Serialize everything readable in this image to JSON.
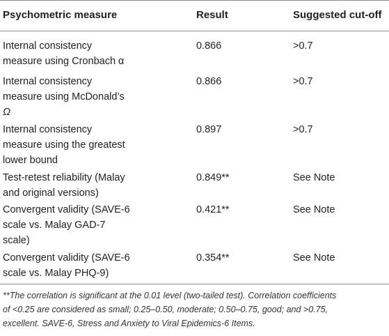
{
  "table": {
    "headers": [
      "Psychometric measure",
      "Result",
      "Suggested cut-off"
    ],
    "rows": [
      {
        "measure": [
          "Internal consistency",
          "measure using Cronbach α"
        ],
        "result": "0.866",
        "cutoff": ">0.7"
      },
      {
        "measure": [
          "Internal consistency",
          "measure using McDonald’s",
          "Ω"
        ],
        "result": "0.866",
        "cutoff": ">0.7"
      },
      {
        "measure": [
          "Internal consistency",
          "measure using the greatest",
          "lower bound"
        ],
        "result": "0.897",
        "cutoff": ">0.7"
      },
      {
        "measure": [
          "Test-retest reliability (Malay",
          "and original versions)"
        ],
        "result": "0.849**",
        "cutoff": "See Note"
      },
      {
        "measure": [
          "Convergent validity (SAVE-6",
          "scale vs. Malay GAD-7",
          "scale)"
        ],
        "result": "0.421**",
        "cutoff": "See Note"
      },
      {
        "measure": [
          "Convergent validity (SAVE-6",
          "scale vs. Malay PHQ-9)"
        ],
        "result": "0.354**",
        "cutoff": "See Note"
      }
    ]
  },
  "footnote": {
    "lines": [
      "**The correlation is significant at the 0.01 level (two-tailed test). Correlation coefficients",
      "of <0.25 are considered as small; 0.25–0.50, moderate; 0.50–0.75, good; and >0.75,",
      "excellent. SAVE-6, Stress and Anxiety to Viral Epidemics-6 Items."
    ]
  }
}
